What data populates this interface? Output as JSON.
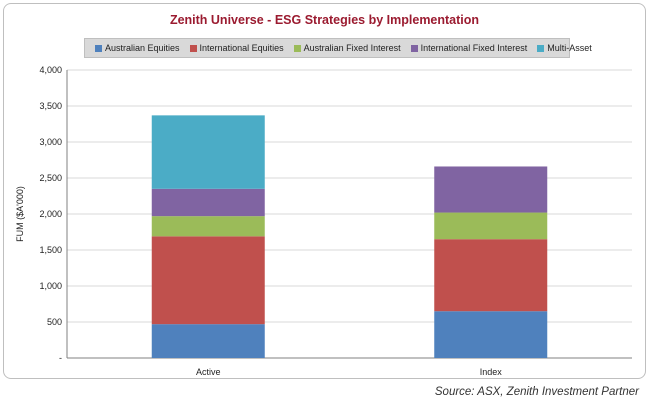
{
  "chart_data": {
    "type": "bar",
    "stacked": true,
    "title": "Zenith Universe - ESG Strategies by Implementation",
    "ylabel": "FUM ($A'000)",
    "xlabel": "",
    "categories": [
      "Active",
      "Index"
    ],
    "ylim": [
      0,
      4000
    ],
    "yticks": [
      0,
      500,
      1000,
      1500,
      2000,
      2500,
      3000,
      3500,
      4000
    ],
    "ytick_labels": [
      "-",
      "500",
      "1,000",
      "1,500",
      "2,000",
      "2,500",
      "3,000",
      "3,500",
      "4,000"
    ],
    "grid": true,
    "legend_position": "top",
    "series": [
      {
        "name": "Australian Equities",
        "color": "#4f81bd",
        "values": [
          470,
          650
        ]
      },
      {
        "name": "International Equities",
        "color": "#c0504d",
        "values": [
          1220,
          1000
        ]
      },
      {
        "name": "Australian Fixed Interest",
        "color": "#9bbb59",
        "values": [
          280,
          370
        ]
      },
      {
        "name": "International Fixed Interest",
        "color": "#8064a2",
        "values": [
          380,
          640
        ]
      },
      {
        "name": "Multi-Asset",
        "color": "#4bacc6",
        "values": [
          1020,
          0
        ]
      }
    ]
  },
  "source_note": "Source: ASX, Zenith Investment Partner"
}
